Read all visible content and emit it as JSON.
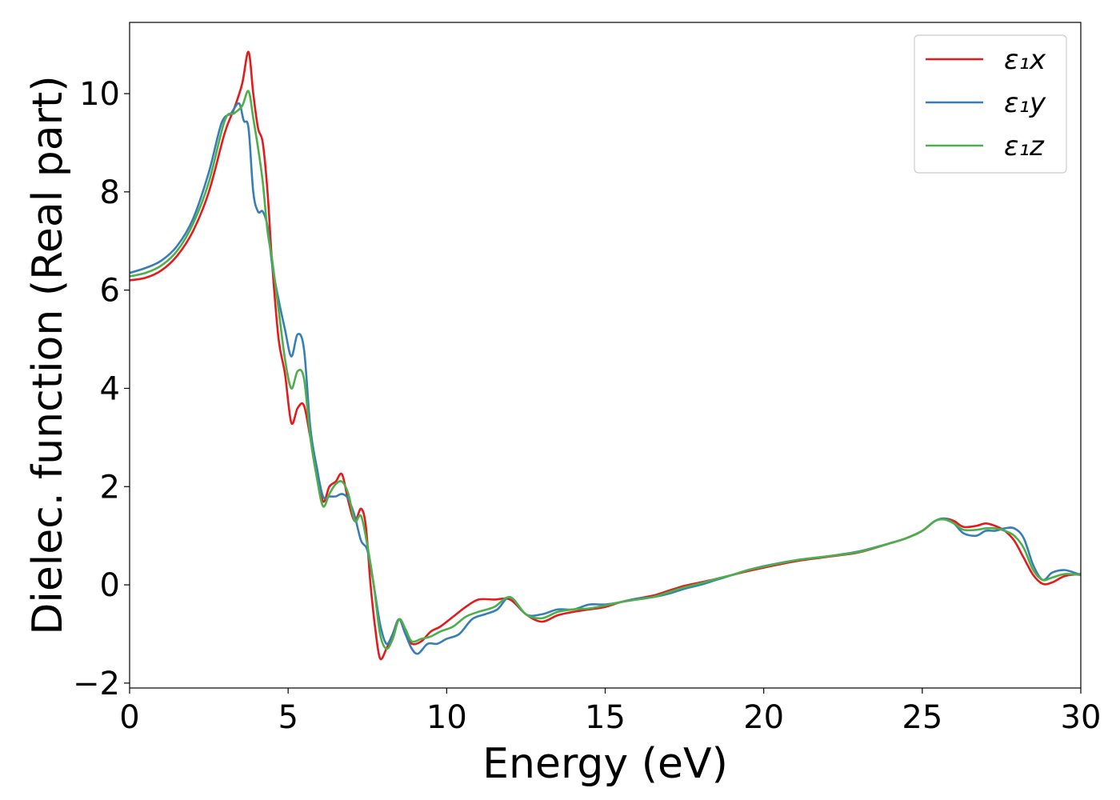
{
  "chart_data": {
    "type": "line",
    "xlabel": "Energy (eV)",
    "ylabel": "Dielec. function (Real part)",
    "xlim": [
      0,
      30
    ],
    "ylim": [
      -2.1,
      11.45
    ],
    "xticks": [
      0,
      5,
      10,
      15,
      20,
      25,
      30
    ],
    "xtick_labels": [
      "0",
      "5",
      "10",
      "15",
      "20",
      "25",
      "30"
    ],
    "yticks": [
      -2,
      0,
      2,
      4,
      6,
      8,
      10
    ],
    "ytick_labels": [
      "−2",
      "0",
      "2",
      "4",
      "6",
      "8",
      "10"
    ],
    "grid": false,
    "legend_position": "top-right",
    "series": [
      {
        "name": "ε₁x",
        "color": "#e41a1c",
        "x": [
          0,
          0.5,
          1.0,
          1.5,
          2.0,
          2.5,
          3.0,
          3.3,
          3.55,
          3.75,
          3.9,
          4.05,
          4.2,
          4.35,
          4.5,
          4.7,
          4.9,
          5.1,
          5.3,
          5.5,
          5.7,
          5.9,
          6.1,
          6.3,
          6.5,
          6.7,
          6.9,
          7.1,
          7.3,
          7.45,
          7.6,
          7.75,
          7.9,
          8.1,
          8.3,
          8.5,
          8.7,
          8.9,
          9.2,
          9.5,
          9.8,
          10.2,
          10.6,
          11.0,
          11.5,
          12.0,
          12.5,
          13.0,
          13.5,
          14.0,
          14.5,
          15.0,
          15.5,
          16.0,
          16.5,
          17.0,
          17.5,
          18.0,
          18.5,
          19.0,
          19.5,
          20.0,
          21.0,
          22.0,
          23.0,
          24.0,
          24.5,
          25.0,
          25.4,
          25.7,
          26.0,
          26.3,
          26.7,
          27.0,
          27.3,
          27.6,
          27.9,
          28.2,
          28.5,
          28.8,
          29.1,
          29.5,
          30.0
        ],
        "y": [
          6.2,
          6.25,
          6.4,
          6.7,
          7.2,
          8.0,
          9.2,
          9.7,
          10.2,
          10.85,
          10.0,
          9.3,
          9.0,
          8.0,
          6.5,
          5.0,
          4.3,
          3.3,
          3.6,
          3.65,
          3.0,
          2.4,
          1.7,
          2.0,
          2.1,
          2.25,
          1.7,
          1.3,
          1.55,
          1.2,
          0.0,
          -0.9,
          -1.5,
          -1.3,
          -1.0,
          -0.7,
          -1.0,
          -1.2,
          -1.15,
          -0.95,
          -0.85,
          -0.65,
          -0.45,
          -0.3,
          -0.3,
          -0.3,
          -0.6,
          -0.75,
          -0.62,
          -0.55,
          -0.5,
          -0.45,
          -0.35,
          -0.28,
          -0.22,
          -0.12,
          -0.02,
          0.05,
          0.12,
          0.2,
          0.28,
          0.35,
          0.48,
          0.57,
          0.66,
          0.85,
          0.95,
          1.1,
          1.3,
          1.35,
          1.3,
          1.18,
          1.2,
          1.25,
          1.2,
          1.1,
          0.9,
          0.55,
          0.2,
          0.02,
          0.05,
          0.18,
          0.22
        ]
      },
      {
        "name": "ε₁y",
        "color": "#377eb8",
        "x": [
          0,
          0.5,
          1.0,
          1.5,
          2.0,
          2.5,
          2.9,
          3.2,
          3.45,
          3.6,
          3.75,
          3.9,
          4.05,
          4.2,
          4.35,
          4.5,
          4.7,
          4.9,
          5.1,
          5.3,
          5.5,
          5.7,
          5.9,
          6.1,
          6.3,
          6.5,
          6.7,
          6.9,
          7.1,
          7.3,
          7.5,
          7.7,
          7.9,
          8.1,
          8.3,
          8.5,
          8.7,
          8.9,
          9.1,
          9.4,
          9.7,
          10.0,
          10.4,
          10.8,
          11.2,
          11.6,
          12.0,
          12.5,
          13.0,
          13.5,
          14.0,
          14.5,
          15.0,
          15.5,
          16.0,
          16.5,
          17.0,
          17.5,
          18.0,
          18.5,
          19.0,
          19.5,
          20.0,
          21.0,
          22.0,
          23.0,
          24.0,
          24.5,
          25.0,
          25.4,
          25.7,
          26.0,
          26.3,
          26.7,
          27.0,
          27.3,
          27.6,
          27.9,
          28.2,
          28.5,
          28.8,
          29.1,
          29.5,
          30.0
        ],
        "y": [
          6.35,
          6.45,
          6.6,
          6.9,
          7.45,
          8.4,
          9.4,
          9.6,
          9.8,
          9.45,
          9.3,
          8.0,
          7.6,
          7.6,
          7.3,
          6.5,
          5.8,
          5.2,
          4.65,
          5.1,
          4.8,
          3.2,
          2.4,
          1.8,
          1.8,
          1.8,
          1.85,
          1.75,
          1.4,
          0.9,
          0.7,
          0.0,
          -0.8,
          -1.2,
          -1.0,
          -0.7,
          -1.0,
          -1.3,
          -1.4,
          -1.2,
          -1.2,
          -1.1,
          -1.0,
          -0.7,
          -0.6,
          -0.5,
          -0.25,
          -0.6,
          -0.6,
          -0.5,
          -0.5,
          -0.4,
          -0.4,
          -0.35,
          -0.28,
          -0.25,
          -0.18,
          -0.08,
          0.0,
          0.1,
          0.2,
          0.3,
          0.38,
          0.5,
          0.58,
          0.68,
          0.85,
          0.95,
          1.1,
          1.3,
          1.35,
          1.25,
          1.05,
          1.0,
          1.1,
          1.1,
          1.15,
          1.15,
          0.95,
          0.4,
          0.1,
          0.25,
          0.3,
          0.2
        ]
      },
      {
        "name": "ε₁z",
        "color": "#4daf4a",
        "x": [
          0,
          0.5,
          1.0,
          1.5,
          2.0,
          2.5,
          3.0,
          3.3,
          3.55,
          3.75,
          3.9,
          4.05,
          4.2,
          4.35,
          4.5,
          4.7,
          4.9,
          5.1,
          5.3,
          5.5,
          5.7,
          5.9,
          6.1,
          6.3,
          6.5,
          6.7,
          6.9,
          7.1,
          7.3,
          7.5,
          7.7,
          7.9,
          8.1,
          8.3,
          8.5,
          8.7,
          8.9,
          9.2,
          9.5,
          9.8,
          10.2,
          10.6,
          11.0,
          11.5,
          12.0,
          12.5,
          13.0,
          13.5,
          14.0,
          14.5,
          15.0,
          15.5,
          16.0,
          16.5,
          17.0,
          17.5,
          18.0,
          18.5,
          19.0,
          19.5,
          20.0,
          21.0,
          22.0,
          23.0,
          24.0,
          24.5,
          25.0,
          25.4,
          25.7,
          26.0,
          26.3,
          26.7,
          27.0,
          27.3,
          27.6,
          27.9,
          28.2,
          28.5,
          28.8,
          29.1,
          29.5,
          30.0
        ],
        "y": [
          6.28,
          6.35,
          6.5,
          6.8,
          7.35,
          8.2,
          9.45,
          9.6,
          9.75,
          10.05,
          9.5,
          8.9,
          8.2,
          7.2,
          6.6,
          5.6,
          4.6,
          4.0,
          4.35,
          4.2,
          3.0,
          2.2,
          1.6,
          1.85,
          2.05,
          2.1,
          1.85,
          1.3,
          1.4,
          0.8,
          0.0,
          -1.0,
          -1.3,
          -1.1,
          -0.7,
          -0.9,
          -1.15,
          -1.1,
          -1.05,
          -0.95,
          -0.85,
          -0.65,
          -0.55,
          -0.45,
          -0.25,
          -0.6,
          -0.68,
          -0.55,
          -0.5,
          -0.48,
          -0.42,
          -0.35,
          -0.3,
          -0.25,
          -0.15,
          -0.05,
          0.03,
          0.12,
          0.2,
          0.3,
          0.37,
          0.5,
          0.58,
          0.67,
          0.85,
          0.95,
          1.1,
          1.3,
          1.33,
          1.25,
          1.12,
          1.12,
          1.15,
          1.15,
          1.1,
          1.0,
          0.75,
          0.3,
          0.1,
          0.15,
          0.22,
          0.2
        ]
      }
    ]
  }
}
